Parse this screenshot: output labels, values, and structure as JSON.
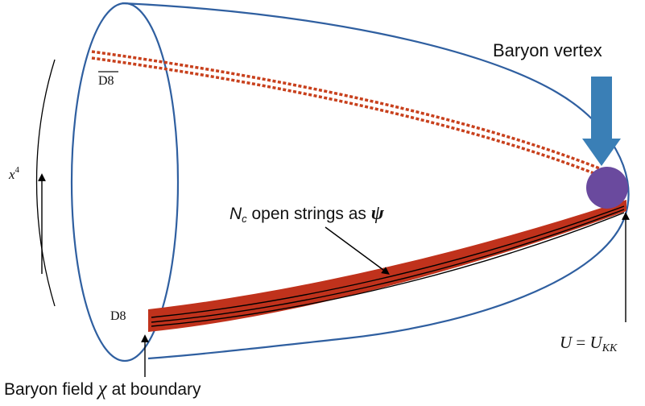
{
  "labels": {
    "baryon_vertex": "Baryon vertex",
    "d8_bar": "D8",
    "d8": "D8",
    "x4_base": "x",
    "x4_sup": "4",
    "strings_prefix": "N",
    "strings_sub": "c",
    "strings_text": " open strings as ",
    "strings_psi": "ψ",
    "u_eq_lhs": "U",
    "u_eq_mid": " = ",
    "u_eq_rhs": "U",
    "u_eq_sub": "KK",
    "baryon_field_prefix": "Baryon field ",
    "baryon_field_chi": "χ",
    "baryon_field_suffix": " at boundary"
  },
  "colors": {
    "tube_outline": "#2f5fa0",
    "anti_d8_dotted": "#c8401c",
    "d8_band": "#c0321c",
    "vertex_arrow": "#3a7fb6",
    "vertex_ball": "#6a4a9e",
    "string_lines": "#000000"
  }
}
